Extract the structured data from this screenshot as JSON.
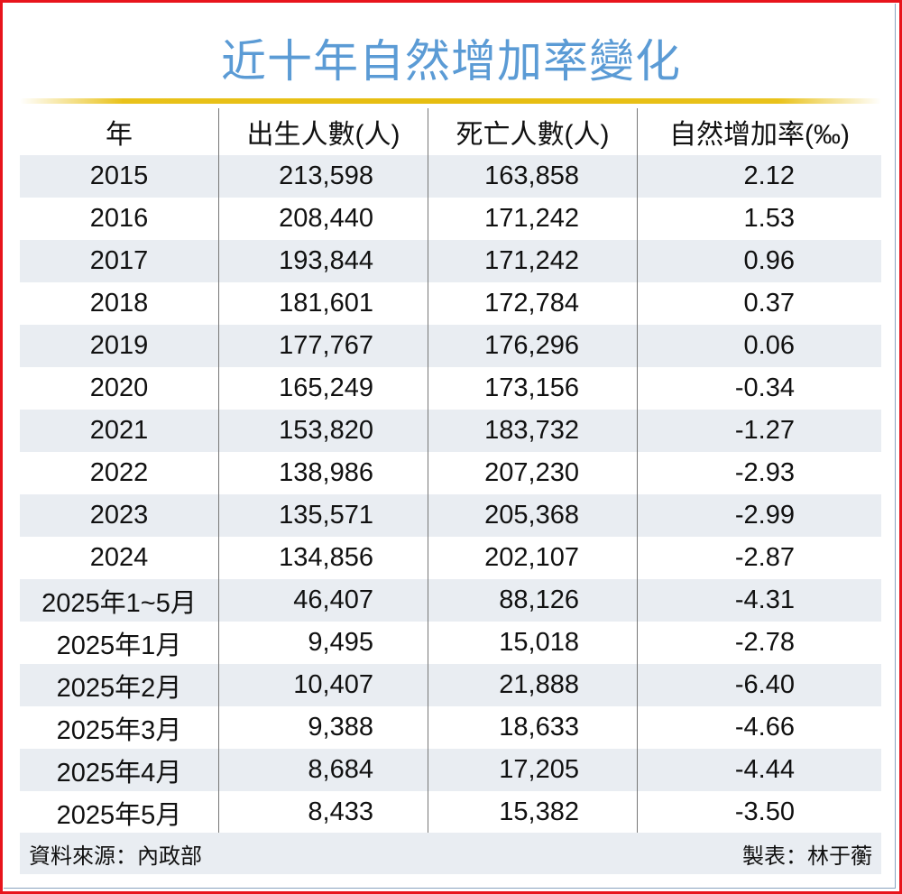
{
  "title": "近十年自然增加率變化",
  "columns": [
    "年",
    "出生人數(人)",
    "死亡人數(人)",
    "自然增加率(‰)"
  ],
  "rows": [
    [
      "2015",
      "213,598",
      "163,858",
      "2.12"
    ],
    [
      "2016",
      "208,440",
      "171,242",
      "1.53"
    ],
    [
      "2017",
      "193,844",
      "171,242",
      "0.96"
    ],
    [
      "2018",
      "181,601",
      "172,784",
      "0.37"
    ],
    [
      "2019",
      "177,767",
      "176,296",
      "0.06"
    ],
    [
      "2020",
      "165,249",
      "173,156",
      "-0.34"
    ],
    [
      "2021",
      "153,820",
      "183,732",
      "-1.27"
    ],
    [
      "2022",
      "138,986",
      "207,230",
      "-2.93"
    ],
    [
      "2023",
      "135,571",
      "205,368",
      "-2.99"
    ],
    [
      "2024",
      "134,856",
      "202,107",
      "-2.87"
    ],
    [
      "2025年1~5月",
      "46,407",
      "88,126",
      "-4.31"
    ],
    [
      "2025年1月",
      "9,495",
      "15,018",
      "-2.78"
    ],
    [
      "2025年2月",
      "10,407",
      "21,888",
      "-6.40"
    ],
    [
      "2025年3月",
      "9,388",
      "18,633",
      "-4.66"
    ],
    [
      "2025年4月",
      "8,684",
      "17,205",
      "-4.44"
    ],
    [
      "2025年5月",
      "8,433",
      "15,382",
      "-3.50"
    ]
  ],
  "footer": {
    "source": "資料來源：內政部",
    "credit": "製表：林于蘅"
  },
  "colors": {
    "title": "#5b9bd5",
    "rule": "#e6bd10",
    "shade": "#e9edf2",
    "border": "#e8141c"
  }
}
